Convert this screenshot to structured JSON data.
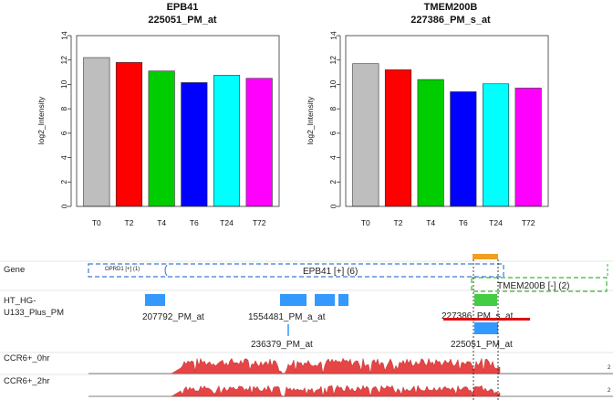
{
  "chart_data": [
    {
      "type": "bar",
      "gene": "EPB41",
      "probe": "225051_PM_at",
      "ylabel": "log2_Intensity",
      "ylim": [
        0,
        14
      ],
      "yticks": [
        "0",
        "2",
        "4",
        "6",
        "8",
        "10",
        "12",
        "14"
      ],
      "categories": [
        "T0",
        "T2",
        "T4",
        "T6",
        "T24",
        "T72"
      ],
      "values": [
        12.2,
        11.8,
        11.1,
        10.15,
        10.75,
        10.5
      ],
      "colors": [
        "#bebebe",
        "#ff0000",
        "#00cd00",
        "#0000ff",
        "#00ffff",
        "#ff00ff"
      ]
    },
    {
      "type": "bar",
      "gene": "TMEM200B",
      "probe": "227386_PM_s_at",
      "ylabel": "log2_Intensity",
      "ylim": [
        0,
        14
      ],
      "yticks": [
        "0",
        "2",
        "4",
        "6",
        "8",
        "10",
        "12",
        "14"
      ],
      "categories": [
        "T0",
        "T2",
        "T4",
        "T6",
        "T24",
        "T72"
      ],
      "values": [
        11.7,
        11.2,
        10.4,
        9.4,
        10.05,
        9.7
      ],
      "colors": [
        "#bebebe",
        "#ff0000",
        "#00cd00",
        "#0000ff",
        "#00ffff",
        "#ff00ff"
      ]
    }
  ],
  "browser": {
    "tracks": {
      "gene": "Gene",
      "array_line1": "HT_HG-",
      "array_line2": "U133_Plus_PM",
      "ccr6_0hr": "CCR6+_0hr",
      "ccr6_2hr": "CCR6+_2hr"
    },
    "genes": {
      "opr": "OPRD1 [+] (1)",
      "epb41": "EPB41 [+] (6)",
      "tmem": "TMEM200B [-] (2)"
    },
    "probes": {
      "p1": "207792_PM_at",
      "p2": "1554481_PM_a_at",
      "p3": "236379_PM_at",
      "p4": "227386_PM_s_at",
      "p5": "225051_PM_at"
    },
    "right_edge_label": "2",
    "colors": {
      "probe_blue": "#3399ff",
      "selected_green": "#44cc44",
      "highlight_orange": "#f0a020",
      "underline_red": "#dd1111",
      "coverage_red": "#e64545",
      "gene_box_blue": "#3a7bd5",
      "gene_box_green": "#33bb33"
    }
  }
}
